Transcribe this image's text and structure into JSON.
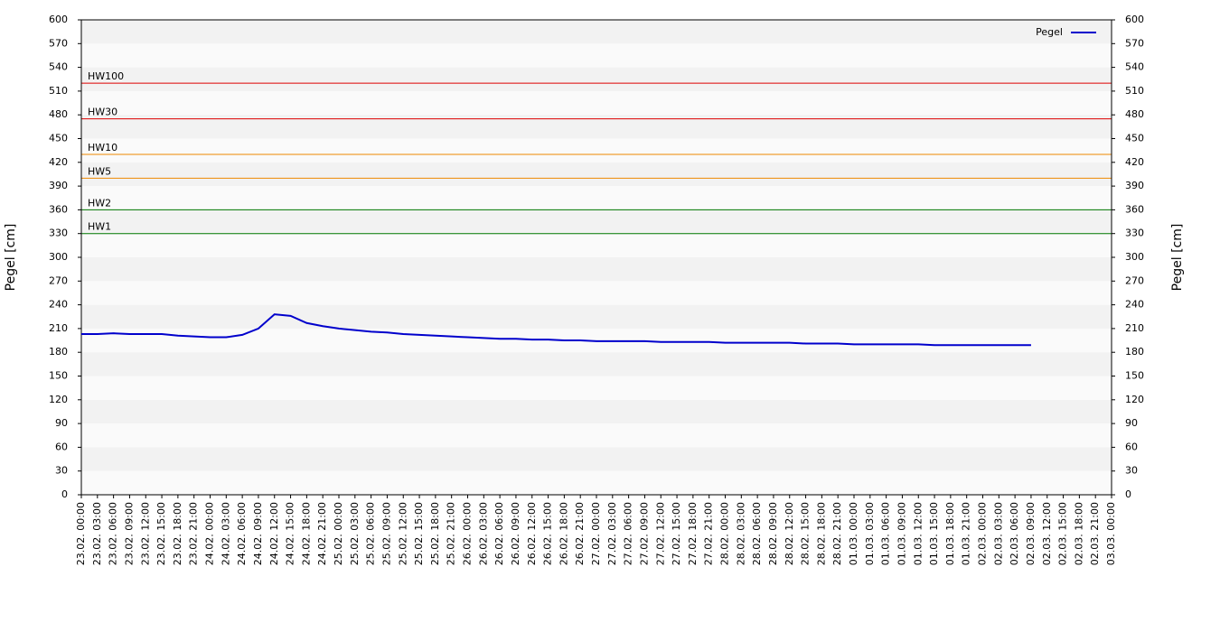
{
  "chart_data": {
    "type": "line",
    "y_label": "Pegel [cm]",
    "y2_label": "Pegel [cm]",
    "legend": "top-right",
    "bands": true,
    "categories": [
      "23.02. 00:00",
      "23.02. 03:00",
      "23.02. 06:00",
      "23.02. 09:00",
      "23.02. 12:00",
      "23.02. 15:00",
      "23.02. 18:00",
      "23.02. 21:00",
      "24.02. 00:00",
      "24.02. 03:00",
      "24.02. 06:00",
      "24.02. 09:00",
      "24.02. 12:00",
      "24.02. 15:00",
      "24.02. 18:00",
      "24.02. 21:00",
      "25.02. 00:00",
      "25.02. 03:00",
      "25.02. 06:00",
      "25.02. 09:00",
      "25.02. 12:00",
      "25.02. 15:00",
      "25.02. 18:00",
      "25.02. 21:00",
      "26.02. 00:00",
      "26.02. 03:00",
      "26.02. 06:00",
      "26.02. 09:00",
      "26.02. 12:00",
      "26.02. 15:00",
      "26.02. 18:00",
      "26.02. 21:00",
      "27.02. 00:00",
      "27.02. 03:00",
      "27.02. 06:00",
      "27.02. 09:00",
      "27.02. 12:00",
      "27.02. 15:00",
      "27.02. 18:00",
      "27.02. 21:00",
      "28.02. 00:00",
      "28.02. 03:00",
      "28.02. 06:00",
      "28.02. 09:00",
      "28.02. 12:00",
      "28.02. 15:00",
      "28.02. 18:00",
      "28.02. 21:00",
      "01.03. 00:00",
      "01.03. 03:00",
      "01.03. 06:00",
      "01.03. 09:00",
      "01.03. 12:00",
      "01.03. 15:00",
      "01.03. 18:00",
      "01.03. 21:00",
      "02.03. 00:00",
      "02.03. 03:00",
      "02.03. 06:00",
      "02.03. 09:00",
      "02.03. 12:00",
      "02.03. 15:00",
      "02.03. 18:00",
      "02.03. 21:00",
      "03.03. 00:00"
    ],
    "series": [
      {
        "name": "Pegel",
        "color": "#0000cc",
        "values": [
          203,
          203,
          204,
          203,
          203,
          203,
          201,
          200,
          199,
          199,
          202,
          210,
          228,
          226,
          217,
          213,
          210,
          208,
          206,
          205,
          203,
          202,
          201,
          200,
          199,
          198,
          197,
          197,
          196,
          196,
          195,
          195,
          194,
          194,
          194,
          194,
          193,
          193,
          193,
          193,
          192,
          192,
          192,
          192,
          192,
          191,
          191,
          191,
          190,
          190,
          190,
          190,
          190,
          189,
          189,
          189,
          189,
          189,
          189,
          189,
          null,
          null,
          null,
          null,
          null
        ]
      }
    ],
    "thresholds": [
      {
        "name": "HW100",
        "value": 520,
        "color": "#dd0000"
      },
      {
        "name": "HW30",
        "value": 475,
        "color": "#dd0000"
      },
      {
        "name": "HW10",
        "value": 430,
        "color": "#ee8800"
      },
      {
        "name": "HW5",
        "value": 400,
        "color": "#ee8800"
      },
      {
        "name": "HW2",
        "value": 360,
        "color": "#007700"
      },
      {
        "name": "HW1",
        "value": 330,
        "color": "#007700"
      }
    ],
    "ylim": [
      0,
      600
    ],
    "yticks": [
      0,
      30,
      60,
      90,
      120,
      150,
      180,
      210,
      240,
      270,
      300,
      330,
      360,
      390,
      420,
      450,
      480,
      510,
      540,
      570,
      600
    ],
    "y2lim": [
      0,
      600
    ],
    "y2ticks": [
      0,
      30,
      60,
      90,
      120,
      150,
      180,
      210,
      240,
      270,
      300,
      330,
      360,
      390,
      420,
      450,
      480,
      510,
      540,
      570,
      600
    ]
  }
}
